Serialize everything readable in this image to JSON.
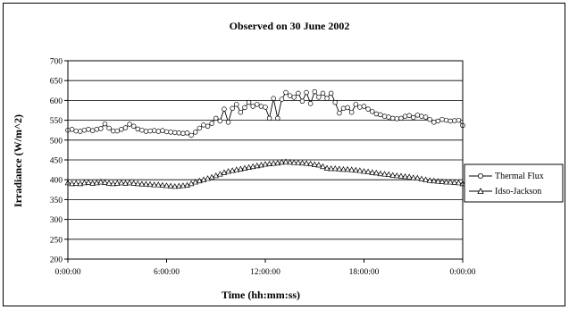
{
  "chart_data": {
    "type": "line",
    "title": "Observed on 30 June 2002",
    "xlabel": "Time (hh:mm:ss)",
    "ylabel": "Irradiance (W/m^2)",
    "ylim": [
      200,
      700
    ],
    "yticks": [
      200,
      250,
      300,
      350,
      400,
      450,
      500,
      550,
      600,
      650,
      700
    ],
    "xlim": [
      "0:00:00",
      "0:00:00"
    ],
    "xticks": [
      "0:00:00",
      "6:00:00",
      "12:00:00",
      "18:00:00",
      "0:00:00"
    ],
    "grid": "horizontal",
    "legend": "right",
    "series": [
      {
        "name": "Thermal Flux",
        "marker": "circle",
        "x_hours": [
          0.0,
          0.25,
          0.5,
          0.75,
          1.0,
          1.25,
          1.5,
          1.75,
          2.0,
          2.25,
          2.5,
          2.75,
          3.0,
          3.25,
          3.5,
          3.75,
          4.0,
          4.25,
          4.5,
          4.75,
          5.0,
          5.25,
          5.5,
          5.75,
          6.0,
          6.25,
          6.5,
          6.75,
          7.0,
          7.25,
          7.5,
          7.75,
          8.0,
          8.25,
          8.5,
          8.75,
          9.0,
          9.25,
          9.5,
          9.75,
          10.0,
          10.25,
          10.5,
          10.75,
          11.0,
          11.25,
          11.5,
          11.75,
          12.0,
          12.25,
          12.5,
          12.75,
          13.0,
          13.25,
          13.5,
          13.75,
          14.0,
          14.25,
          14.5,
          14.75,
          15.0,
          15.25,
          15.5,
          15.75,
          16.0,
          16.25,
          16.5,
          16.75,
          17.0,
          17.25,
          17.5,
          17.75,
          18.0,
          18.25,
          18.5,
          18.75,
          19.0,
          19.25,
          19.5,
          19.75,
          20.0,
          20.25,
          20.5,
          20.75,
          21.0,
          21.25,
          21.5,
          21.75,
          22.0,
          22.25,
          22.5,
          22.75,
          23.0,
          23.25,
          23.5,
          23.75,
          24.0
        ],
        "values": [
          525,
          527,
          523,
          522,
          525,
          527,
          524,
          527,
          529,
          541,
          530,
          523,
          523,
          527,
          531,
          540,
          535,
          528,
          525,
          522,
          523,
          524,
          522,
          524,
          521,
          520,
          519,
          518,
          517,
          518,
          512,
          520,
          530,
          538,
          535,
          542,
          555,
          548,
          578,
          545,
          580,
          590,
          570,
          582,
          595,
          585,
          590,
          585,
          583,
          555,
          605,
          555,
          603,
          620,
          612,
          608,
          618,
          598,
          620,
          592,
          622,
          608,
          618,
          605,
          618,
          595,
          568,
          580,
          582,
          570,
          590,
          583,
          585,
          578,
          572,
          566,
          564,
          560,
          558,
          555,
          554,
          555,
          560,
          562,
          557,
          563,
          560,
          558,
          552,
          545,
          548,
          552,
          550,
          548,
          549,
          550,
          537
        ]
      },
      {
        "name": "Idso-Jackson",
        "marker": "triangle",
        "x_hours": [
          0.0,
          0.25,
          0.5,
          0.75,
          1.0,
          1.25,
          1.5,
          1.75,
          2.0,
          2.25,
          2.5,
          2.75,
          3.0,
          3.25,
          3.5,
          3.75,
          4.0,
          4.25,
          4.5,
          4.75,
          5.0,
          5.25,
          5.5,
          5.75,
          6.0,
          6.25,
          6.5,
          6.75,
          7.0,
          7.25,
          7.5,
          7.75,
          8.0,
          8.25,
          8.5,
          8.75,
          9.0,
          9.25,
          9.5,
          9.75,
          10.0,
          10.25,
          10.5,
          10.75,
          11.0,
          11.25,
          11.5,
          11.75,
          12.0,
          12.25,
          12.5,
          12.75,
          13.0,
          13.25,
          13.5,
          13.75,
          14.0,
          14.25,
          14.5,
          14.75,
          15.0,
          15.25,
          15.5,
          15.75,
          16.0,
          16.25,
          16.5,
          16.75,
          17.0,
          17.25,
          17.5,
          17.75,
          18.0,
          18.25,
          18.5,
          18.75,
          19.0,
          19.25,
          19.5,
          19.75,
          20.0,
          20.25,
          20.5,
          20.75,
          21.0,
          21.25,
          21.5,
          21.75,
          22.0,
          22.25,
          22.5,
          22.75,
          23.0,
          23.25,
          23.5,
          23.75,
          24.0
        ],
        "values": [
          392,
          390,
          391,
          390,
          392,
          393,
          391,
          392,
          394,
          393,
          391,
          390,
          391,
          392,
          391,
          392,
          391,
          390,
          389,
          389,
          388,
          387,
          387,
          386,
          385,
          384,
          383,
          384,
          385,
          386,
          390,
          394,
          397,
          400,
          403,
          406,
          410,
          414,
          418,
          421,
          423,
          425,
          427,
          429,
          431,
          433,
          435,
          437,
          439,
          440,
          441,
          442,
          444,
          445,
          444,
          443,
          443,
          442,
          441,
          440,
          438,
          437,
          433,
          429,
          428,
          428,
          427,
          426,
          426,
          425,
          424,
          423,
          421,
          420,
          418,
          417,
          415,
          414,
          413,
          411,
          410,
          409,
          408,
          407,
          405,
          404,
          402,
          400,
          398,
          397,
          396,
          395,
          394,
          394,
          393,
          392,
          390
        ]
      }
    ]
  }
}
